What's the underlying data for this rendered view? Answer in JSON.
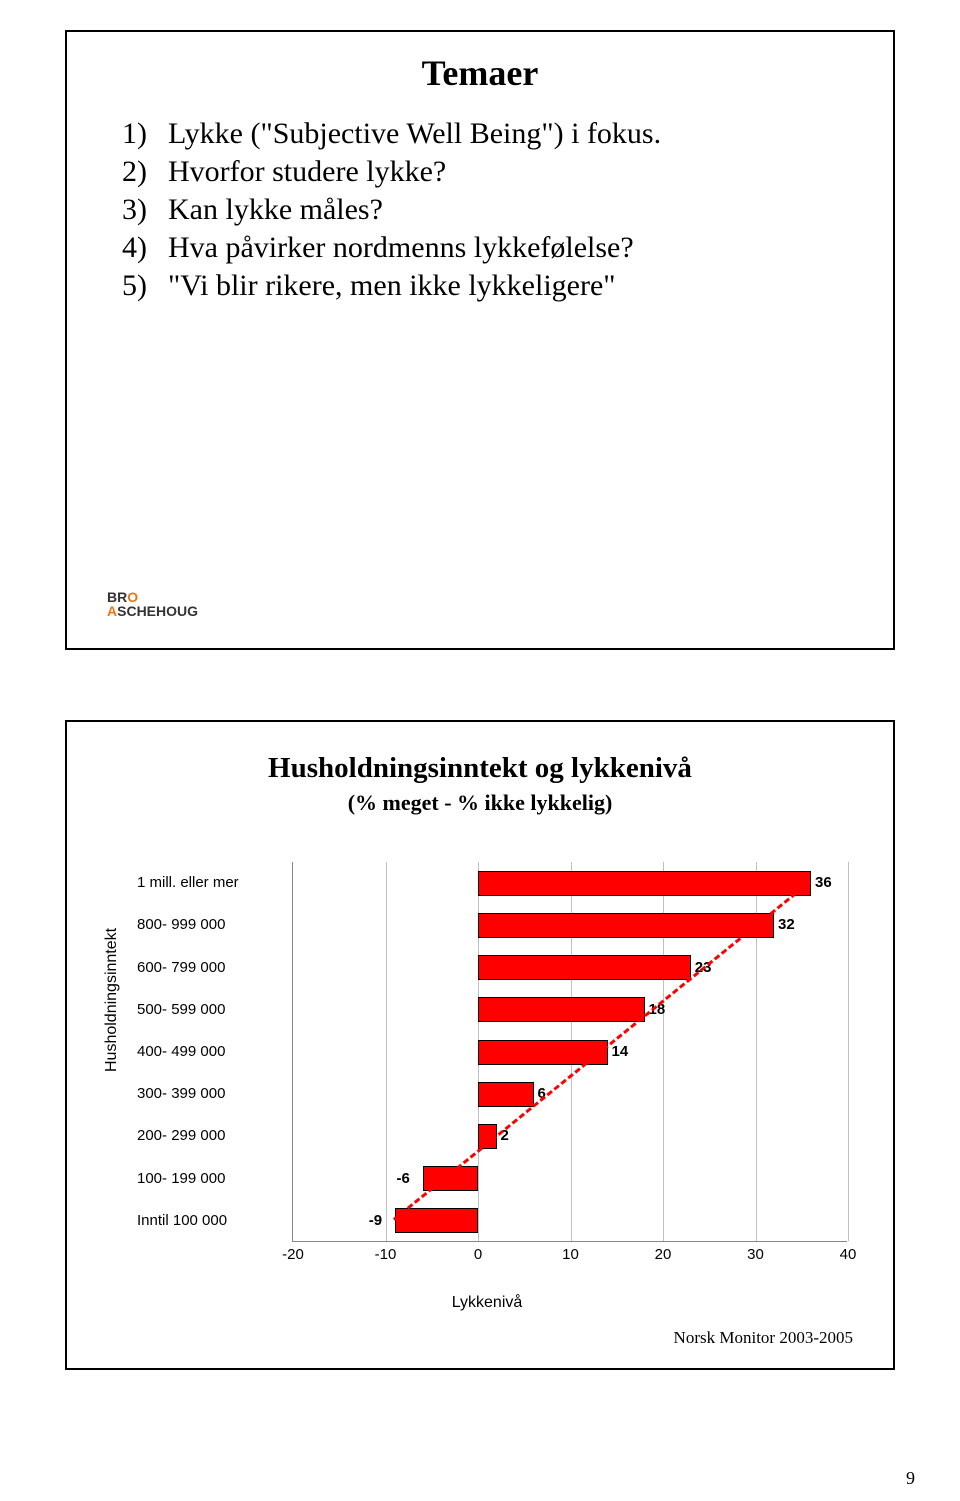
{
  "slide1": {
    "title": "Temaer",
    "items": [
      "Lykke (\"Subjective Well Being\") i fokus.",
      "Hvorfor studere lykke?",
      "Kan lykke måles?",
      "Hva påvirker nordmenns lykkefølelse?",
      "\"Vi blir rikere, men ikke lykkeligere\""
    ],
    "logo": {
      "l1a": "BR",
      "l1b": "O",
      "l2a": "A",
      "l2b": "SCHEHOUG"
    }
  },
  "slide2": {
    "title": "Husholdningsinntekt og lykkenivå",
    "subtitle": "(% meget - % ikke lykkelig)",
    "type": "bar",
    "y_axis_label": "Husholdningsinntekt",
    "x_axis_label": "Lykkenivå",
    "xlim": [
      -20,
      40
    ],
    "xtick_step": 10,
    "categories": [
      "1 mill. eller mer",
      "800- 999 000",
      "600- 799 000",
      "500- 599 000",
      "400- 499 000",
      "300- 399 000",
      "200- 299 000",
      "100- 199 000",
      "Inntil 100 000"
    ],
    "values": [
      36,
      32,
      23,
      18,
      14,
      6,
      2,
      -6,
      -9
    ],
    "bar_color": "#ff0000",
    "bar_border": "#000000",
    "grid_color": "#c0c0c0",
    "background_color": "#ffffff",
    "source_text": "Norsk Monitor 2003-2005",
    "label_fontsize": 15,
    "title_fontsize": 29
  },
  "page_number": "9"
}
